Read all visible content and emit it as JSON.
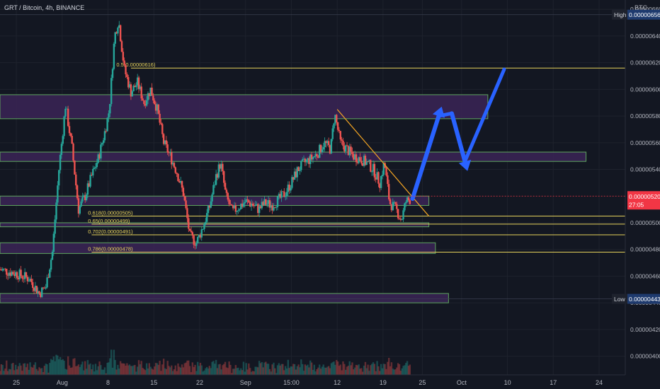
{
  "header": {
    "symbol_title": "GRT / Bitcoin, 4h, BINANCE"
  },
  "colors": {
    "background": "#131722",
    "grid": "#1e222d",
    "up": "#26a69a",
    "down": "#ef5350",
    "zone_fill": "#3b2456",
    "zone_stroke": "#5fa65f",
    "fib": "#e6d25b",
    "trendline": "#f5a623",
    "arrow": "#2962ff",
    "axis_text": "#b2b5be",
    "last_price_bg": "#f23645",
    "high_low_bg": "#1e3a6e"
  },
  "chart_data": {
    "type": "candlestick",
    "symbol": "GRT / Bitcoin",
    "interval": "4h",
    "exchange": "BINANCE",
    "currency": "BTC",
    "y_axis": {
      "ylim": [
        3.86e-06,
        6.67e-06
      ],
      "ticks": [
        "0.00000400",
        "0.00000420",
        "0.00000440",
        "0.00000460",
        "0.00000480",
        "0.00000500",
        "0.00000540",
        "0.00000560",
        "0.00000580",
        "0.00000600",
        "0.00000620",
        "0.00000640",
        "0.00000660"
      ]
    },
    "x_axis": {
      "ticks": [
        {
          "label": "25",
          "x": 0
        },
        {
          "label": "Aug",
          "x": 7
        },
        {
          "label": "8",
          "x": 14
        },
        {
          "label": "15",
          "x": 21
        },
        {
          "label": "22",
          "x": 28
        },
        {
          "label": "Sep",
          "x": 35
        },
        {
          "label": "15:00",
          "x": 42
        },
        {
          "label": "12",
          "x": 49
        },
        {
          "label": "19",
          "x": 56
        },
        {
          "label": "25",
          "x": 62
        },
        {
          "label": "Oct",
          "x": 68
        },
        {
          "label": "10",
          "x": 75
        },
        {
          "label": "17",
          "x": 82
        },
        {
          "label": "24",
          "x": 89
        }
      ],
      "xlim": [
        -2.5,
        93
      ]
    },
    "price_path": [
      [
        -2.5,
        4.65e-06
      ],
      [
        0,
        4.62e-06
      ],
      [
        2,
        4.58e-06
      ],
      [
        3.5,
        4.47e-06
      ],
      [
        4.5,
        4.52e-06
      ],
      [
        5.5,
        4.78e-06
      ],
      [
        6.5,
        5.4e-06
      ],
      [
        7.5,
        5.88e-06
      ],
      [
        8.5,
        5.56e-06
      ],
      [
        9.5,
        5.1e-06
      ],
      [
        10.5,
        5.2e-06
      ],
      [
        11.5,
        5.35e-06
      ],
      [
        12.5,
        5.48e-06
      ],
      [
        13.5,
        5.68e-06
      ],
      [
        14.2,
        5.85e-06
      ],
      [
        15,
        6.4e-06
      ],
      [
        15.6,
        6.52e-06
      ],
      [
        16.5,
        6.15e-06
      ],
      [
        17.5,
        5.98e-06
      ],
      [
        18.5,
        6.05e-06
      ],
      [
        19.5,
        5.9e-06
      ],
      [
        20.5,
        6e-06
      ],
      [
        21.5,
        5.85e-06
      ],
      [
        22.5,
        5.6e-06
      ],
      [
        23.5,
        5.5e-06
      ],
      [
        24.5,
        5.38e-06
      ],
      [
        25.5,
        5.22e-06
      ],
      [
        26.5,
        4.9e-06
      ],
      [
        27.5,
        4.85e-06
      ],
      [
        28.5,
        4.97e-06
      ],
      [
        29.5,
        5.12e-06
      ],
      [
        30.5,
        5.35e-06
      ],
      [
        31.2,
        5.45e-06
      ],
      [
        32,
        5.2e-06
      ],
      [
        33,
        5.08e-06
      ],
      [
        34,
        5.12e-06
      ],
      [
        35,
        5.16e-06
      ],
      [
        36,
        5.14e-06
      ],
      [
        37,
        5.1e-06
      ],
      [
        38,
        5.15e-06
      ],
      [
        39,
        5.13e-06
      ],
      [
        40,
        5.17e-06
      ],
      [
        41,
        5.22e-06
      ],
      [
        42,
        5.3e-06
      ],
      [
        43,
        5.4e-06
      ],
      [
        44,
        5.45e-06
      ],
      [
        45,
        5.48e-06
      ],
      [
        46,
        5.52e-06
      ],
      [
        47,
        5.6e-06
      ],
      [
        48,
        5.55e-06
      ],
      [
        48.6,
        5.82e-06
      ],
      [
        49.5,
        5.6e-06
      ],
      [
        50.5,
        5.55e-06
      ],
      [
        51.5,
        5.5e-06
      ],
      [
        52.5,
        5.48e-06
      ],
      [
        53.5,
        5.45e-06
      ],
      [
        54.5,
        5.4e-06
      ],
      [
        55.5,
        5.3e-06
      ],
      [
        56.2,
        5.45e-06
      ],
      [
        57,
        5.15e-06
      ],
      [
        58,
        5.1e-06
      ],
      [
        58.8,
        5.02e-06
      ],
      [
        59.5,
        5.16e-06
      ],
      [
        60.3,
        5.18e-06
      ]
    ],
    "volume_range": [
      0,
      80
    ],
    "high": {
      "label": "High",
      "value": "0.00000656"
    },
    "low": {
      "label": "Low",
      "value": "0.00000443"
    },
    "last_price": {
      "value": "0.00000520",
      "countdown": "27:05"
    },
    "zones": [
      {
        "from": 5.78e-06,
        "to": 5.96e-06,
        "x_end": 72
      },
      {
        "from": 5.46e-06,
        "to": 5.53e-06,
        "x_end": 87
      },
      {
        "from": 5.13e-06,
        "to": 5.2e-06,
        "x_end": 63
      },
      {
        "from": 4.97e-06,
        "to": 5e-06,
        "x_end": 63
      },
      {
        "from": 4.77e-06,
        "to": 4.85e-06,
        "x_end": 64
      },
      {
        "from": 4.4e-06,
        "to": 4.47e-06,
        "x_end": 66
      }
    ],
    "fib_levels": [
      {
        "label": "0.5",
        "value": 6.16e-06,
        "label_x": 15.5
      },
      {
        "label": "0.618(0.00000505)",
        "value": 5.05e-06,
        "label_x": 10.5
      },
      {
        "label": "0.65(0.00000499)",
        "value": 4.99e-06,
        "label_x": 10.5
      },
      {
        "label": "0.702(0.00000491)",
        "value": 4.91e-06,
        "label_x": 10.5
      },
      {
        "label": "0.786(0.00000478)",
        "value": 4.78e-06,
        "label_x": 10.5
      }
    ],
    "fib_inline_label": "(0.00000616)",
    "trendline": [
      [
        49,
        5.85e-06
      ],
      [
        63,
        5.05e-06
      ]
    ],
    "arrows": [
      [
        [
          60.5,
          5.18e-06
        ],
        [
          64.5,
          5.8e-06
        ],
        [
          66.5,
          5.82e-06
        ],
        [
          68.5,
          5.46e-06
        ],
        [
          74.5,
          6.15e-06
        ]
      ]
    ]
  }
}
